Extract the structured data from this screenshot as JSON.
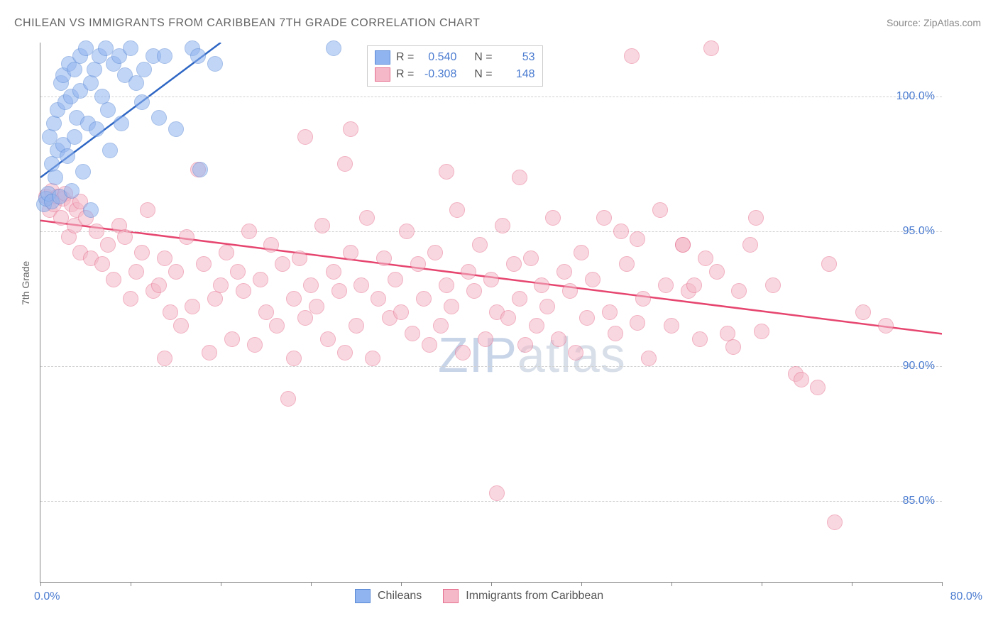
{
  "title": "CHILEAN VS IMMIGRANTS FROM CARIBBEAN 7TH GRADE CORRELATION CHART",
  "source_prefix": "Source: ",
  "source_name": "ZipAtlas.com",
  "ylabel": "7th Grade",
  "watermark_bold": "ZIP",
  "watermark_rest": "atlas",
  "chart": {
    "type": "scatter",
    "x_domain": [
      0,
      80
    ],
    "y_domain": [
      82,
      102
    ],
    "y_ticks": [
      85.0,
      90.0,
      95.0,
      100.0
    ],
    "y_tick_labels": [
      "85.0%",
      "90.0%",
      "95.0%",
      "100.0%"
    ],
    "x_tick_positions": [
      0,
      8,
      16,
      24,
      32,
      40,
      48,
      56,
      64,
      72,
      80
    ],
    "x_left_label": "0.0%",
    "x_right_label": "80.0%",
    "grid_color": "#d0d0d0",
    "axis_color": "#888888",
    "background": "#ffffff",
    "marker_radius": 10,
    "marker_opacity": 0.55,
    "series": [
      {
        "id": "chileans",
        "label": "Chileans",
        "fill": "#90b4ef",
        "stroke": "#5b8ad6",
        "line_color": "#2e66c4",
        "R": "0.540",
        "N": "53",
        "regression": {
          "x1": 0,
          "y1": 97.0,
          "x2": 16,
          "y2": 102.0
        },
        "points": [
          [
            0.3,
            96.0
          ],
          [
            0.5,
            96.2
          ],
          [
            0.7,
            96.4
          ],
          [
            0.8,
            98.5
          ],
          [
            1.0,
            96.1
          ],
          [
            1.0,
            97.5
          ],
          [
            1.2,
            99.0
          ],
          [
            1.3,
            97.0
          ],
          [
            1.5,
            98.0
          ],
          [
            1.5,
            99.5
          ],
          [
            1.7,
            96.3
          ],
          [
            1.8,
            100.5
          ],
          [
            2.0,
            98.2
          ],
          [
            2.0,
            100.8
          ],
          [
            2.2,
            99.8
          ],
          [
            2.4,
            97.8
          ],
          [
            2.5,
            101.2
          ],
          [
            2.7,
            100.0
          ],
          [
            2.8,
            96.5
          ],
          [
            3.0,
            101.0
          ],
          [
            3.0,
            98.5
          ],
          [
            3.2,
            99.2
          ],
          [
            3.5,
            101.5
          ],
          [
            3.5,
            100.2
          ],
          [
            3.8,
            97.2
          ],
          [
            4.0,
            101.8
          ],
          [
            4.2,
            99.0
          ],
          [
            4.5,
            100.5
          ],
          [
            4.5,
            95.8
          ],
          [
            4.8,
            101.0
          ],
          [
            5.0,
            98.8
          ],
          [
            5.2,
            101.5
          ],
          [
            5.5,
            100.0
          ],
          [
            5.8,
            101.8
          ],
          [
            6.0,
            99.5
          ],
          [
            6.2,
            98.0
          ],
          [
            6.5,
            101.2
          ],
          [
            7.0,
            101.5
          ],
          [
            7.2,
            99.0
          ],
          [
            7.5,
            100.8
          ],
          [
            8.0,
            101.8
          ],
          [
            8.5,
            100.5
          ],
          [
            9.0,
            99.8
          ],
          [
            9.2,
            101.0
          ],
          [
            10.0,
            101.5
          ],
          [
            10.5,
            99.2
          ],
          [
            11.0,
            101.5
          ],
          [
            12.0,
            98.8
          ],
          [
            13.5,
            101.8
          ],
          [
            14.0,
            101.5
          ],
          [
            14.2,
            97.3
          ],
          [
            15.5,
            101.2
          ],
          [
            26.0,
            101.8
          ]
        ]
      },
      {
        "id": "caribbean",
        "label": "Immigrants from Caribbean",
        "fill": "#f4b8c8",
        "stroke": "#e6708f",
        "line_color": "#e6456f",
        "R": "-0.308",
        "N": "148",
        "regression": {
          "x1": 0,
          "y1": 95.4,
          "x2": 80,
          "y2": 91.2
        },
        "points": [
          [
            0.5,
            96.3
          ],
          [
            0.8,
            95.8
          ],
          [
            1.0,
            96.5
          ],
          [
            1.2,
            96.0
          ],
          [
            1.5,
            96.3
          ],
          [
            1.8,
            95.5
          ],
          [
            2.0,
            96.2
          ],
          [
            2.2,
            96.4
          ],
          [
            2.5,
            94.8
          ],
          [
            2.8,
            96.0
          ],
          [
            3.0,
            95.2
          ],
          [
            3.2,
            95.8
          ],
          [
            3.5,
            94.2
          ],
          [
            3.5,
            96.1
          ],
          [
            4.0,
            95.5
          ],
          [
            4.5,
            94.0
          ],
          [
            5.0,
            95.0
          ],
          [
            5.5,
            93.8
          ],
          [
            6.0,
            94.5
          ],
          [
            6.5,
            93.2
          ],
          [
            7.0,
            95.2
          ],
          [
            7.5,
            94.8
          ],
          [
            8.0,
            92.5
          ],
          [
            8.5,
            93.5
          ],
          [
            9.0,
            94.2
          ],
          [
            9.5,
            95.8
          ],
          [
            10.0,
            92.8
          ],
          [
            10.5,
            93.0
          ],
          [
            11.0,
            94.0
          ],
          [
            11.0,
            90.3
          ],
          [
            11.5,
            92.0
          ],
          [
            12.0,
            93.5
          ],
          [
            12.5,
            91.5
          ],
          [
            13.0,
            94.8
          ],
          [
            13.5,
            92.2
          ],
          [
            14.0,
            97.3
          ],
          [
            14.5,
            93.8
          ],
          [
            15.0,
            90.5
          ],
          [
            15.5,
            92.5
          ],
          [
            16.0,
            93.0
          ],
          [
            16.5,
            94.2
          ],
          [
            17.0,
            91.0
          ],
          [
            17.5,
            93.5
          ],
          [
            18.0,
            92.8
          ],
          [
            18.5,
            95.0
          ],
          [
            19.0,
            90.8
          ],
          [
            19.5,
            93.2
          ],
          [
            20.0,
            92.0
          ],
          [
            20.5,
            94.5
          ],
          [
            21.0,
            91.5
          ],
          [
            21.5,
            93.8
          ],
          [
            22.0,
            88.8
          ],
          [
            22.5,
            90.3
          ],
          [
            22.5,
            92.5
          ],
          [
            23.0,
            94.0
          ],
          [
            23.5,
            98.5
          ],
          [
            23.5,
            91.8
          ],
          [
            24.0,
            93.0
          ],
          [
            24.5,
            92.2
          ],
          [
            25.0,
            95.2
          ],
          [
            25.5,
            91.0
          ],
          [
            26.0,
            93.5
          ],
          [
            26.5,
            92.8
          ],
          [
            27.0,
            90.5
          ],
          [
            27.5,
            94.2
          ],
          [
            27.5,
            98.8
          ],
          [
            28.0,
            91.5
          ],
          [
            28.5,
            93.0
          ],
          [
            29.0,
            95.5
          ],
          [
            29.5,
            90.3
          ],
          [
            30.0,
            92.5
          ],
          [
            30.5,
            94.0
          ],
          [
            31.0,
            91.8
          ],
          [
            31.5,
            93.2
          ],
          [
            32.0,
            92.0
          ],
          [
            32.5,
            95.0
          ],
          [
            33.0,
            91.2
          ],
          [
            33.5,
            93.8
          ],
          [
            34.0,
            92.5
          ],
          [
            34.5,
            90.8
          ],
          [
            35.0,
            94.2
          ],
          [
            35.5,
            91.5
          ],
          [
            36.0,
            93.0
          ],
          [
            36.0,
            97.2
          ],
          [
            36.5,
            92.2
          ],
          [
            37.0,
            95.8
          ],
          [
            37.5,
            90.5
          ],
          [
            38.0,
            93.5
          ],
          [
            38.5,
            92.8
          ],
          [
            39.0,
            94.5
          ],
          [
            39.5,
            91.0
          ],
          [
            40.0,
            93.2
          ],
          [
            40.5,
            92.0
          ],
          [
            40.5,
            85.3
          ],
          [
            41.0,
            95.2
          ],
          [
            41.5,
            91.8
          ],
          [
            42.0,
            93.8
          ],
          [
            42.5,
            92.5
          ],
          [
            42.5,
            97.0
          ],
          [
            43.0,
            90.8
          ],
          [
            43.5,
            94.0
          ],
          [
            44.0,
            91.5
          ],
          [
            44.5,
            93.0
          ],
          [
            45.0,
            92.2
          ],
          [
            45.5,
            95.5
          ],
          [
            46.0,
            91.0
          ],
          [
            46.5,
            93.5
          ],
          [
            47.0,
            92.8
          ],
          [
            47.5,
            90.5
          ],
          [
            48.0,
            94.2
          ],
          [
            48.5,
            91.8
          ],
          [
            49.0,
            93.2
          ],
          [
            50.0,
            95.5
          ],
          [
            50.5,
            92.0
          ],
          [
            51.0,
            91.2
          ],
          [
            51.5,
            95.0
          ],
          [
            52.0,
            93.8
          ],
          [
            53.0,
            94.7
          ],
          [
            53.0,
            91.6
          ],
          [
            53.5,
            92.5
          ],
          [
            54.0,
            90.3
          ],
          [
            55.0,
            95.8
          ],
          [
            55.5,
            93.0
          ],
          [
            56.0,
            91.5
          ],
          [
            57.0,
            94.5
          ],
          [
            57.0,
            94.5
          ],
          [
            57.5,
            92.8
          ],
          [
            58.0,
            93.0
          ],
          [
            58.5,
            91.0
          ],
          [
            59.0,
            94.0
          ],
          [
            60.0,
            93.5
          ],
          [
            61.0,
            91.2
          ],
          [
            61.5,
            90.7
          ],
          [
            62.0,
            92.8
          ],
          [
            63.0,
            94.5
          ],
          [
            63.5,
            95.5
          ],
          [
            64.0,
            91.3
          ],
          [
            65.0,
            93.0
          ],
          [
            67.0,
            89.7
          ],
          [
            67.5,
            89.5
          ],
          [
            69.0,
            89.2
          ],
          [
            70.0,
            93.8
          ],
          [
            70.5,
            84.2
          ],
          [
            73.0,
            92.0
          ],
          [
            75.0,
            91.5
          ],
          [
            52.5,
            101.5
          ],
          [
            59.5,
            101.8
          ],
          [
            27.0,
            97.5
          ]
        ]
      }
    ]
  },
  "legend_top": {
    "r_label": "R =",
    "n_label": "N ="
  }
}
